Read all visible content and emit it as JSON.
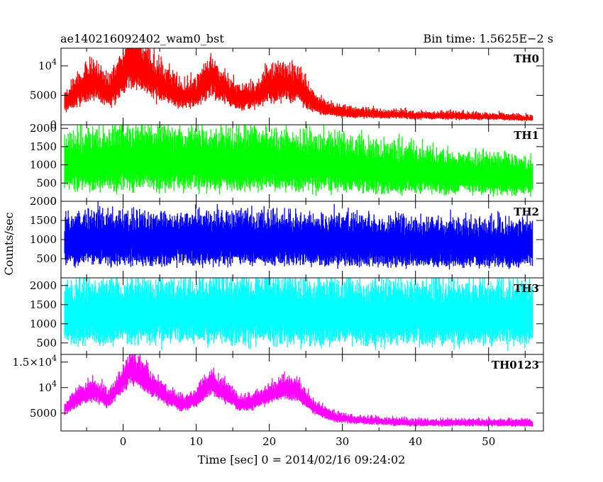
{
  "header": {
    "title": "ae140216092402_wam0_bst",
    "bin_time": "Bin time: 1.5625E−2 s"
  },
  "chart_data": {
    "type": "line",
    "xlabel": "Time [sec] 0 = 2014/02/16 09:24:02",
    "ylabel": "Counts/sec",
    "xlim": [
      -8.5,
      57.5
    ],
    "x_ticks": [
      0,
      10,
      20,
      30,
      40,
      50
    ],
    "x_tick_labels": [
      "0",
      "10",
      "20",
      "30",
      "40",
      "50"
    ],
    "grid": false,
    "panels": [
      {
        "label": "TH0",
        "color": "#ff0000",
        "ylim": [
          0,
          13000
        ],
        "y_ticks": [
          0,
          5000,
          10000
        ],
        "y_tick_labels": [
          [
            "0",
            ""
          ],
          [
            "5000",
            ""
          ],
          [
            "10",
            "4"
          ]
        ],
        "x": [
          -8,
          -6,
          -4,
          -2,
          0,
          1,
          2,
          4,
          6,
          8,
          10,
          12,
          14,
          16,
          18,
          20,
          22,
          24,
          26,
          28,
          30,
          35,
          40,
          45,
          50,
          56
        ],
        "values": [
          3500,
          5500,
          7000,
          5000,
          8000,
          10500,
          9500,
          7500,
          6000,
          4500,
          5000,
          7500,
          5500,
          4000,
          4500,
          6000,
          6500,
          6000,
          3500,
          2500,
          2000,
          1700,
          1500,
          1400,
          1300,
          1000
        ],
        "noise": 0.22,
        "spread": 0.35
      },
      {
        "label": "TH1",
        "color": "#00ff00",
        "ylim": [
          0,
          2100
        ],
        "y_ticks": [
          0,
          500,
          1000,
          1500,
          2000
        ],
        "y_tick_labels": [
          [
            "0",
            ""
          ],
          [
            "500",
            ""
          ],
          [
            "1000",
            ""
          ],
          [
            "1500",
            ""
          ],
          [
            "2000",
            ""
          ]
        ],
        "x": [
          -8,
          0,
          10,
          20,
          30,
          40,
          50,
          56
        ],
        "values": [
          900,
          1050,
          1000,
          1000,
          900,
          750,
          650,
          600
        ],
        "noise": 0.25,
        "spread": 0.7
      },
      {
        "label": "TH2",
        "color": "#0000ff",
        "ylim": [
          0,
          2000
        ],
        "y_ticks": [
          500,
          1000,
          1500,
          2000
        ],
        "y_tick_labels": [
          [
            "500",
            ""
          ],
          [
            "1000",
            ""
          ],
          [
            "1500",
            ""
          ],
          [
            "2000",
            ""
          ]
        ],
        "x": [
          -8,
          0,
          10,
          20,
          30,
          40,
          50,
          56
        ],
        "values": [
          900,
          900,
          900,
          900,
          850,
          820,
          800,
          780
        ],
        "noise": 0.22,
        "spread": 0.65
      },
      {
        "label": "TH3",
        "color": "#00ffff",
        "ylim": [
          200,
          2200
        ],
        "y_ticks": [
          500,
          1000,
          1500,
          2000
        ],
        "y_tick_labels": [
          [
            "500",
            ""
          ],
          [
            "1000",
            ""
          ],
          [
            "1500",
            ""
          ],
          [
            "2000",
            ""
          ]
        ],
        "x": [
          -8,
          0,
          10,
          20,
          30,
          40,
          50,
          56
        ],
        "values": [
          1150,
          1200,
          1200,
          1200,
          1150,
          1150,
          1150,
          1150
        ],
        "noise": 0.22,
        "spread": 0.6
      },
      {
        "label": "TH0123",
        "color": "#ff00ff",
        "ylim": [
          1500,
          16500
        ],
        "y_ticks": [
          5000,
          10000,
          15000
        ],
        "y_tick_labels": [
          [
            "5000",
            ""
          ],
          [
            "10",
            "4"
          ],
          [
            "1.5×10",
            "4"
          ]
        ],
        "x": [
          -8,
          -6,
          -4,
          -2,
          0,
          1,
          2,
          4,
          6,
          8,
          10,
          12,
          14,
          16,
          18,
          20,
          22,
          24,
          26,
          28,
          30,
          35,
          40,
          45,
          50,
          56
        ],
        "values": [
          5500,
          8000,
          9000,
          7500,
          11000,
          13500,
          12500,
          10000,
          8000,
          6500,
          7500,
          10500,
          8500,
          6500,
          7000,
          8500,
          9500,
          9000,
          6000,
          4500,
          3800,
          3300,
          3000,
          3000,
          3000,
          2900
        ],
        "noise": 0.1,
        "spread": 0.18
      }
    ]
  }
}
